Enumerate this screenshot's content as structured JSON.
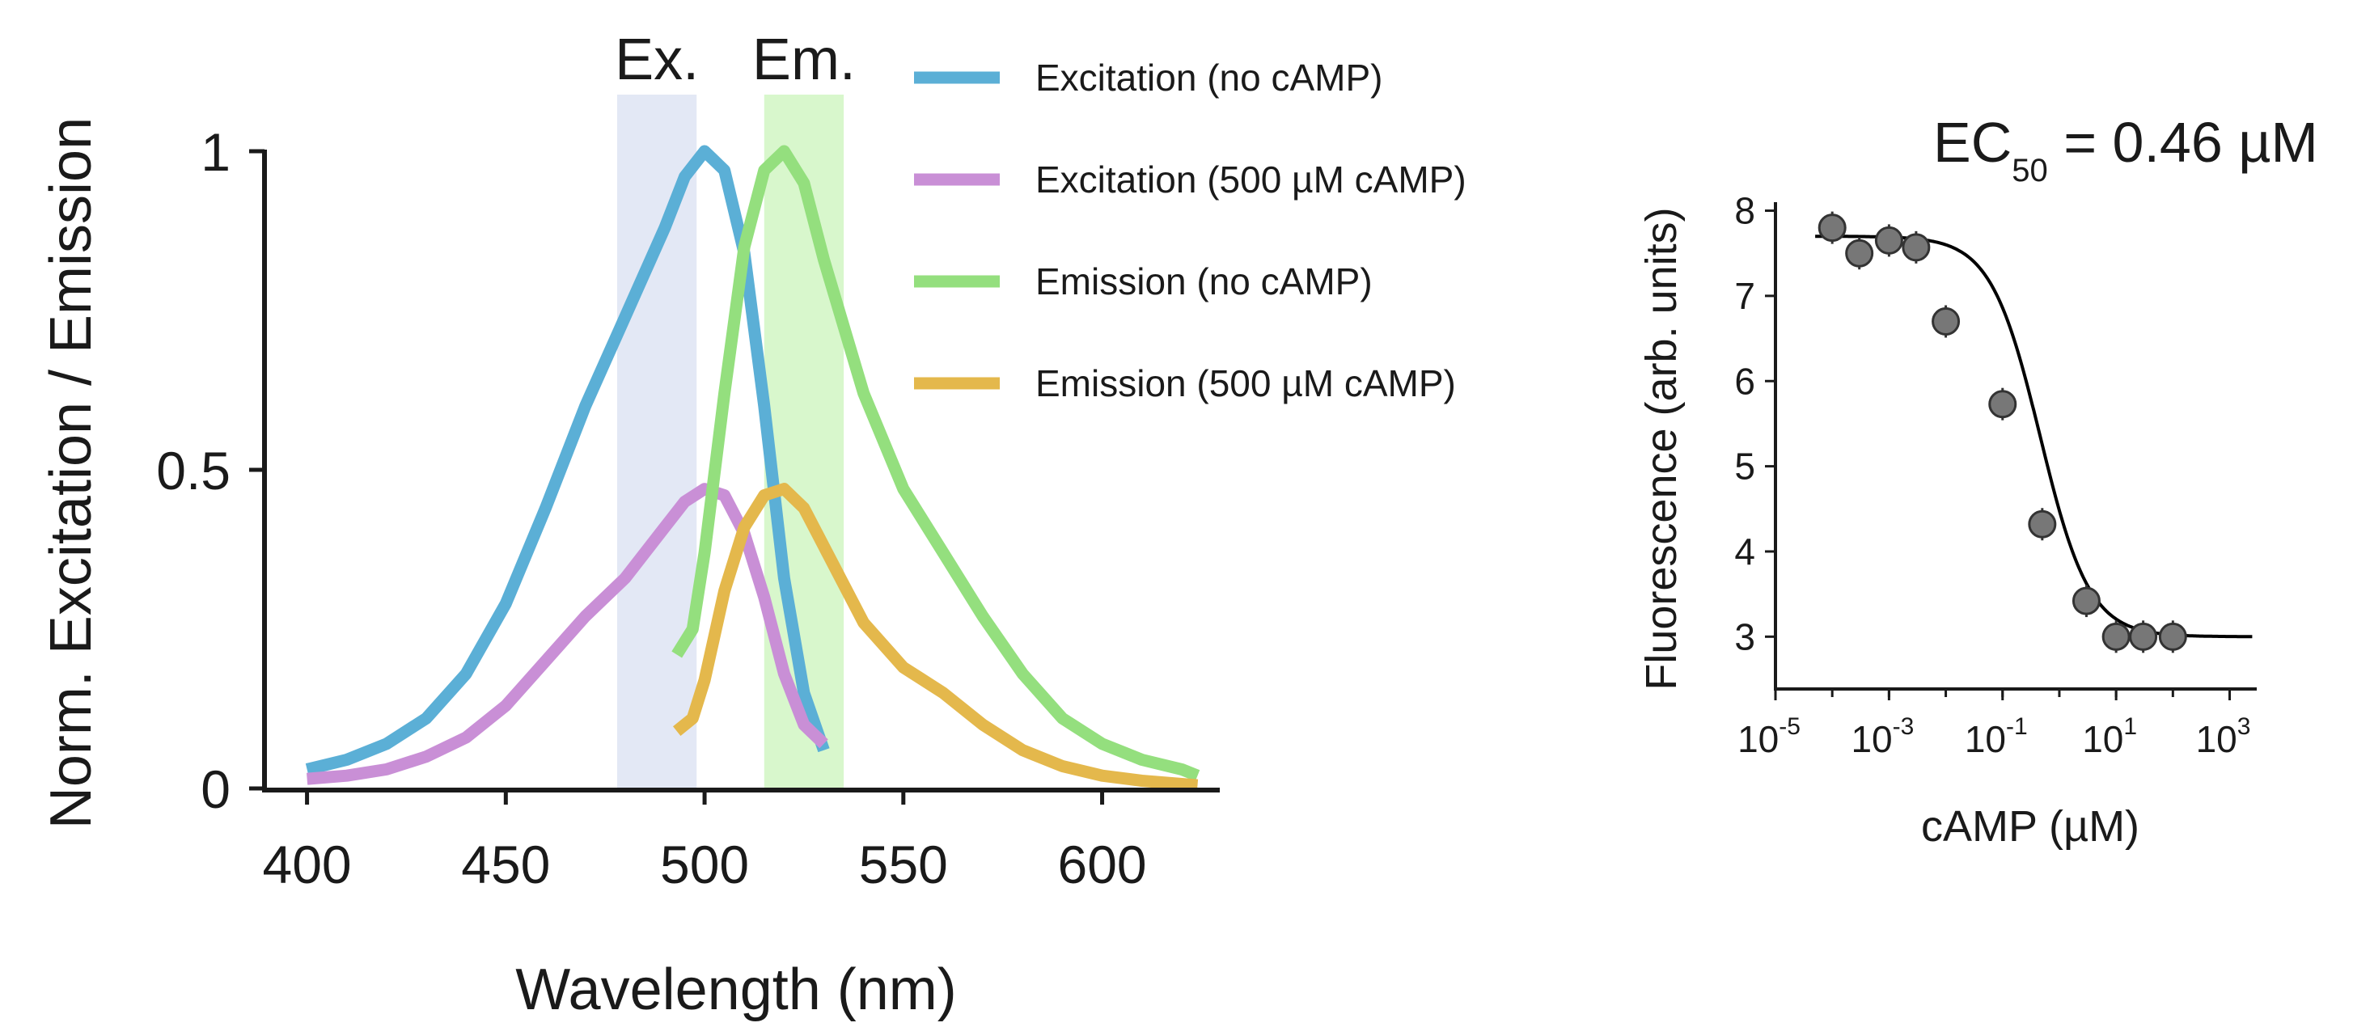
{
  "chart_data": [
    {
      "type": "line",
      "title": "",
      "xlabel": "Wavelength (nm)",
      "ylabel": "Norm. Excitation / Emission",
      "xlim": [
        395,
        630
      ],
      "ylim": [
        0,
        1
      ],
      "x_ticks": [
        "400",
        "450",
        "500",
        "550",
        "600"
      ],
      "y_ticks": [
        "0",
        "0.5",
        "1"
      ],
      "grid": false,
      "legend": "top-right",
      "bands": [
        {
          "label": "Ex.",
          "x0": 478,
          "x1": 498,
          "color": "#e3e8f5"
        },
        {
          "label": "Em.",
          "x0": 515,
          "x1": 535,
          "color": "#d8f7cc"
        }
      ],
      "series": [
        {
          "name": "Excitation (no cAMP)",
          "color": "#5bafd6",
          "x": [
            400,
            410,
            420,
            430,
            440,
            450,
            460,
            470,
            480,
            490,
            495,
            500,
            505,
            510,
            515,
            520,
            525,
            530
          ],
          "y": [
            0.03,
            0.045,
            0.07,
            0.11,
            0.18,
            0.29,
            0.44,
            0.6,
            0.74,
            0.88,
            0.96,
            1.0,
            0.97,
            0.84,
            0.6,
            0.33,
            0.15,
            0.06
          ]
        },
        {
          "name": "Excitation (500 µM cAMP)",
          "color": "#c98fd6",
          "x": [
            400,
            410,
            420,
            430,
            440,
            450,
            460,
            470,
            480,
            490,
            495,
            500,
            505,
            510,
            515,
            520,
            525,
            530
          ],
          "y": [
            0.015,
            0.02,
            0.03,
            0.05,
            0.08,
            0.13,
            0.2,
            0.27,
            0.33,
            0.41,
            0.45,
            0.47,
            0.46,
            0.4,
            0.3,
            0.18,
            0.1,
            0.07
          ]
        },
        {
          "name": "Emission (no cAMP)",
          "color": "#94df7e",
          "x": [
            493,
            497,
            500,
            505,
            510,
            515,
            520,
            525,
            530,
            540,
            550,
            560,
            570,
            580,
            590,
            600,
            610,
            620,
            624
          ],
          "y": [
            0.21,
            0.25,
            0.37,
            0.62,
            0.85,
            0.97,
            1.0,
            0.95,
            0.83,
            0.62,
            0.47,
            0.37,
            0.27,
            0.18,
            0.11,
            0.07,
            0.045,
            0.03,
            0.02
          ]
        },
        {
          "name": "Emission (500 µM cAMP)",
          "color": "#e4b84c",
          "x": [
            493,
            497,
            500,
            505,
            510,
            515,
            520,
            525,
            530,
            540,
            550,
            560,
            570,
            580,
            590,
            600,
            610,
            620,
            624
          ],
          "y": [
            0.09,
            0.11,
            0.17,
            0.31,
            0.41,
            0.46,
            0.47,
            0.44,
            0.38,
            0.26,
            0.19,
            0.15,
            0.1,
            0.06,
            0.035,
            0.02,
            0.012,
            0.007,
            0.005
          ]
        }
      ]
    },
    {
      "type": "scatter",
      "title": "EC",
      "title_subscript": "50",
      "title_suffix": " = 0.46 µM",
      "xlabel": "cAMP (µM)",
      "ylabel": "Fluorescence (arb. units)",
      "x_scale": "log",
      "xlim": [
        1e-05,
        3000
      ],
      "ylim": [
        2.5,
        8.1
      ],
      "x_ticks": [
        {
          "base": "10",
          "exp": "-5"
        },
        {
          "base": "10",
          "exp": "-3"
        },
        {
          "base": "10",
          "exp": "-1"
        },
        {
          "base": "10",
          "exp": "1"
        },
        {
          "base": "10",
          "exp": "3"
        }
      ],
      "y_ticks": [
        "3",
        "4",
        "5",
        "6",
        "7",
        "8"
      ],
      "grid": false,
      "points": {
        "x": [
          0.0001,
          0.0003,
          0.001,
          0.003,
          0.01,
          0.1,
          0.5,
          3,
          10,
          30,
          100
        ],
        "y": [
          7.8,
          7.5,
          7.65,
          7.57,
          6.7,
          5.73,
          4.32,
          3.42,
          3.0,
          3.0,
          3.0
        ],
        "color": "#777777"
      },
      "fit": {
        "top": 7.7,
        "bottom": 3.0,
        "ec50": 0.46,
        "hill": 1.0
      }
    }
  ]
}
